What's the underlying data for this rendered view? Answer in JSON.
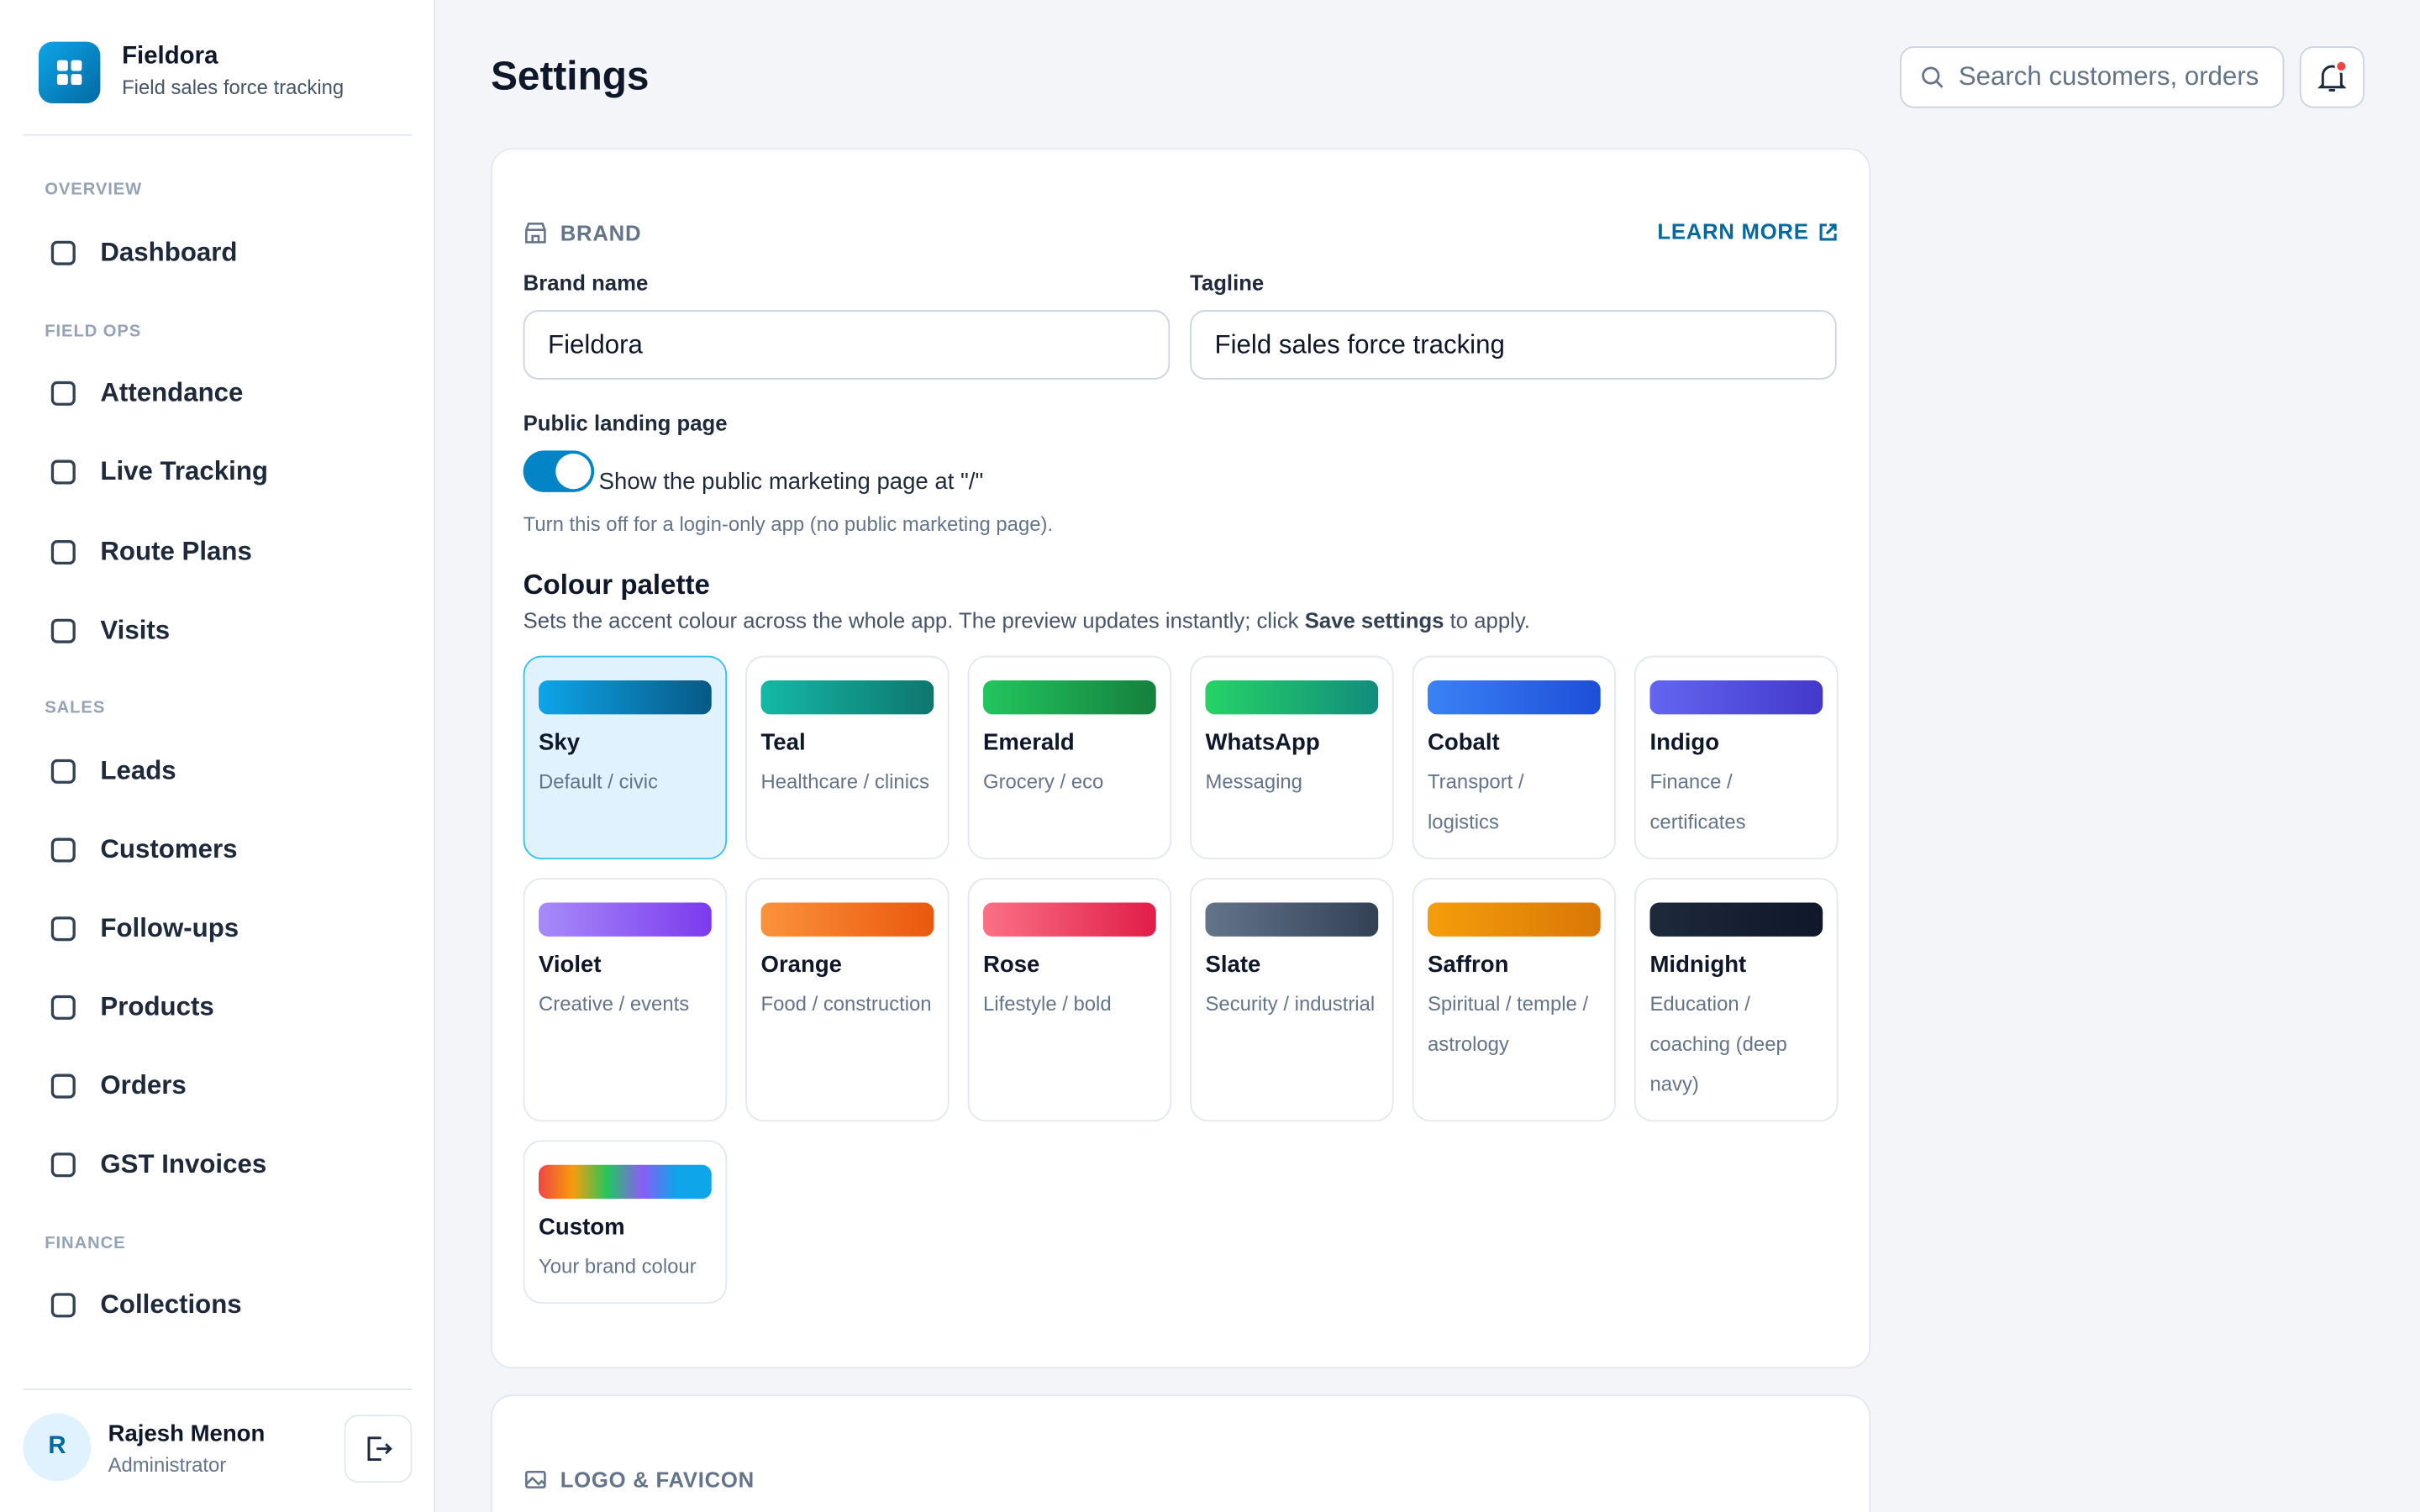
{
  "sidebar": {
    "app_name": "Fieldora",
    "app_tagline": "Field sales force tracking",
    "sections": [
      {
        "title": "OVERVIEW",
        "items": [
          "Dashboard"
        ]
      },
      {
        "title": "FIELD OPS",
        "items": [
          "Attendance",
          "Live Tracking",
          "Route Plans",
          "Visits"
        ]
      },
      {
        "title": "SALES",
        "items": [
          "Leads",
          "Customers",
          "Follow-ups",
          "Products",
          "Orders",
          "GST Invoices"
        ]
      },
      {
        "title": "FINANCE",
        "items": [
          "Collections"
        ]
      }
    ],
    "user": {
      "initial": "R",
      "name": "Rajesh Menon",
      "role": "Administrator"
    }
  },
  "header": {
    "title": "Settings",
    "search_placeholder": "Search customers, orders"
  },
  "brand_section": {
    "title": "BRAND",
    "learn_more": "LEARN MORE",
    "brand_name_label": "Brand name",
    "brand_name_value": "Fieldora",
    "tagline_label": "Tagline",
    "tagline_value": "Field sales force tracking",
    "landing_label": "Public landing page",
    "toggle_text": "Show the public marketing page at \"/\"",
    "toggle_help": "Turn this off for a login-only app (no public marketing page).",
    "palette_title": "Colour palette",
    "palette_desc_before": "Sets the accent colour across the whole app. The preview updates instantly; click",
    "palette_desc_bold": "Save settings",
    "palette_desc_after": "to apply.",
    "palettes": [
      {
        "name": "Sky",
        "desc": "Default / civic",
        "colors": [
          "#0ea5e9",
          "#075985"
        ]
      },
      {
        "name": "Teal",
        "desc": "Healthcare / clinics",
        "colors": [
          "#14b8a6",
          "#0f766e"
        ]
      },
      {
        "name": "Emerald",
        "desc": "Grocery / eco",
        "colors": [
          "#22c55e",
          "#15803d"
        ]
      },
      {
        "name": "WhatsApp",
        "desc": "Messaging",
        "colors": [
          "#25d366",
          "#128c7e"
        ]
      },
      {
        "name": "Cobalt",
        "desc": "Transport / logistics",
        "colors": [
          "#3b82f6",
          "#1d4ed8"
        ]
      },
      {
        "name": "Indigo",
        "desc": "Finance / certificates",
        "colors": [
          "#6366f1",
          "#4338ca"
        ]
      },
      {
        "name": "Violet",
        "desc": "Creative / events",
        "colors": [
          "#a78bfa",
          "#7c3aed"
        ]
      },
      {
        "name": "Orange",
        "desc": "Food / construction",
        "colors": [
          "#fb923c",
          "#ea580c"
        ]
      },
      {
        "name": "Rose",
        "desc": "Lifestyle / bold",
        "colors": [
          "#fb7185",
          "#e11d48"
        ]
      },
      {
        "name": "Slate",
        "desc": "Security / industrial",
        "colors": [
          "#64748b",
          "#334155"
        ]
      },
      {
        "name": "Saffron",
        "desc": "Spiritual / temple / astrology",
        "colors": [
          "#f59e0b",
          "#d97706"
        ]
      },
      {
        "name": "Midnight",
        "desc": "Education / coaching (deep navy)",
        "colors": [
          "#1e293b",
          "#0f172a"
        ]
      },
      {
        "name": "Custom",
        "desc": "Your brand colour",
        "colors": [
          "#ef4444",
          "#f59e0b",
          "#22c55e",
          "#8b5cf6",
          "#0ea5e9",
          "#0ea5e9"
        ]
      }
    ]
  },
  "logo_section": {
    "title": "LOGO & FAVICON"
  }
}
